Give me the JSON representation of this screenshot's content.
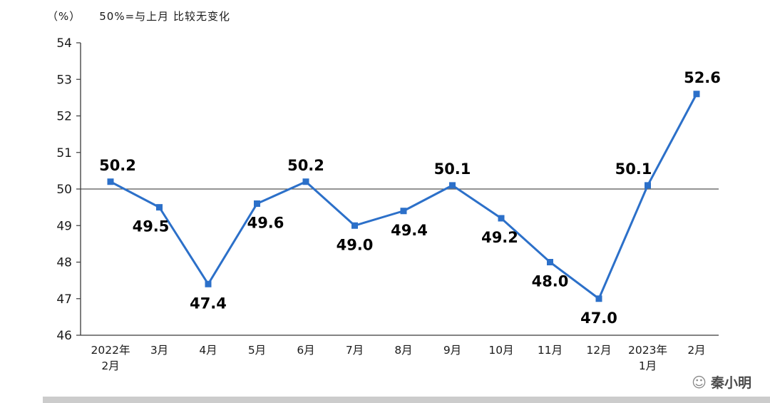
{
  "header": {
    "percent_label": "（%）",
    "subtitle": "50%=与上月 比较无变化"
  },
  "watermark": {
    "name": "秦小明",
    "icon": "face-icon"
  },
  "colors": {
    "line": "#2C70C9",
    "axis": "#3a3a3a",
    "reference_line": "#555555",
    "data_label": "#000000",
    "tick_label": "#1a1a1a"
  },
  "chart_data": {
    "type": "line",
    "title": "",
    "xlabel": "",
    "ylabel": "%",
    "categories": [
      [
        "2022年",
        "2月"
      ],
      [
        "3月"
      ],
      [
        "4月"
      ],
      [
        "5月"
      ],
      [
        "6月"
      ],
      [
        "7月"
      ],
      [
        "8月"
      ],
      [
        "9月"
      ],
      [
        "10月"
      ],
      [
        "11月"
      ],
      [
        "12月"
      ],
      [
        "2023年",
        "1月"
      ],
      [
        "2月"
      ]
    ],
    "values": [
      50.2,
      49.5,
      47.4,
      49.6,
      50.2,
      49.0,
      49.4,
      50.1,
      49.2,
      48.0,
      47.0,
      50.1,
      52.6
    ],
    "ylim": [
      46,
      54
    ],
    "ytick_step": 1,
    "reference_line": 50,
    "grid": false,
    "legend": "none",
    "marker": "square",
    "label_positions": [
      "above",
      "below",
      "below",
      "below",
      "above",
      "below",
      "below",
      "above",
      "below",
      "below",
      "below",
      "above",
      "above"
    ],
    "label_dx": [
      10,
      -12,
      0,
      12,
      0,
      0,
      8,
      0,
      -2,
      0,
      0,
      -20,
      8
    ]
  }
}
